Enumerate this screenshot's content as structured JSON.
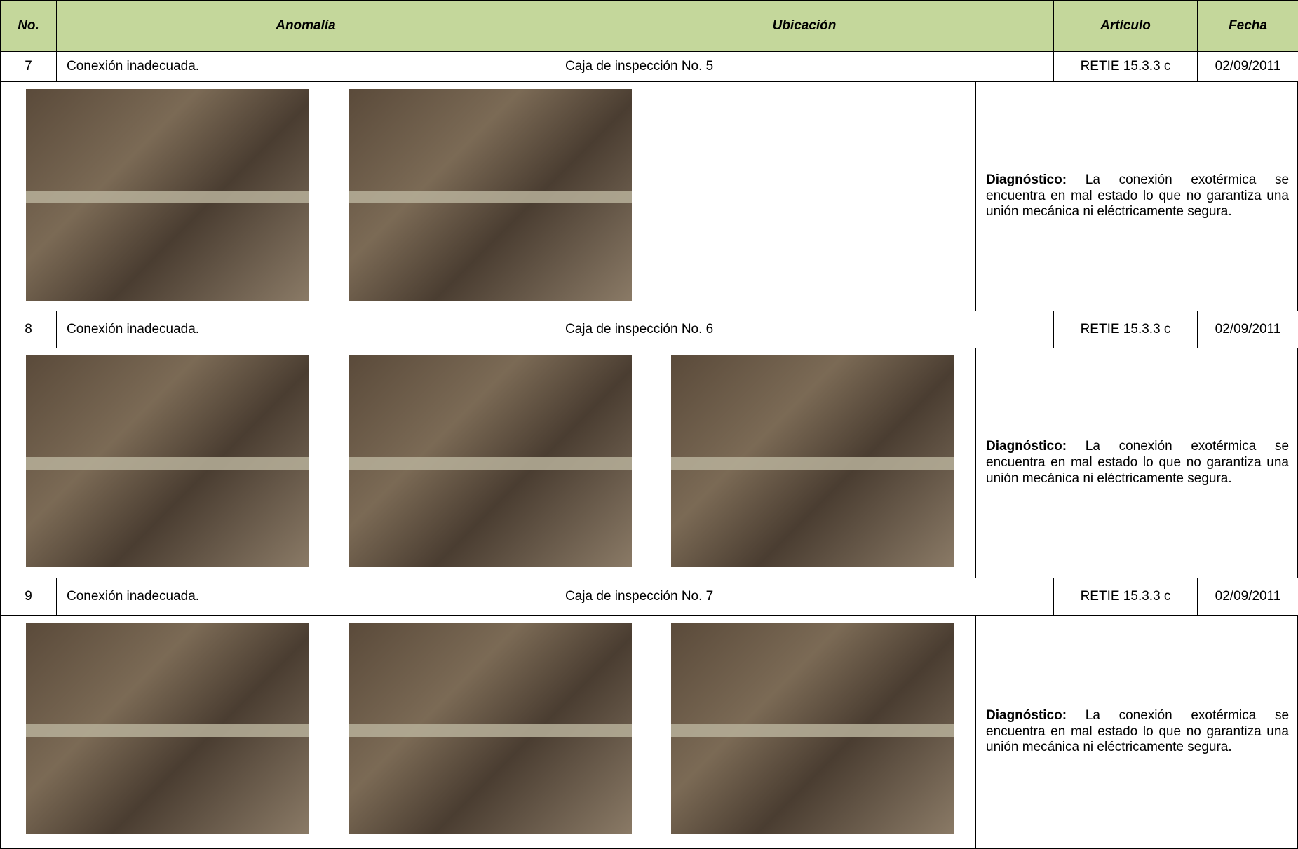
{
  "header": [
    "No.",
    "Anomalía",
    "Ubicación",
    "Artículo",
    "Fecha"
  ],
  "records": [
    {
      "no": "7",
      "anomalia": "Conexión inadecuada.",
      "ubicacion": "Caja de inspección No. 5",
      "articulo": "RETIE 15.3.3 c",
      "fecha": "02/09/2011",
      "diagnostico_label": "Diagnóstico:",
      "diagnostico_text": "La conexión exotérmica se encuentra en mal estado lo que no garantiza una unión mecánica ni eléctricamente segura."
    },
    {
      "no": "8",
      "anomalia": "Conexión inadecuada.",
      "ubicacion": "Caja de inspección No. 6",
      "articulo": "RETIE 15.3.3 c",
      "fecha": "02/09/2011",
      "diagnostico_label": "Diagnóstico:",
      "diagnostico_text": "La conexión exotérmica se encuentra en mal estado lo que no garantiza una unión mecánica ni eléctricamente segura."
    },
    {
      "no": "9",
      "anomalia": "Conexión inadecuada.",
      "ubicacion": "Caja de inspección No. 7",
      "articulo": "RETIE 15.3.3 c",
      "fecha": "02/09/2011",
      "diagnostico_label": "Diagnóstico:",
      "diagnostico_text": "La conexión exotérmica se encuentra en mal estado lo que no garantiza una unión mecánica ni eléctricamente segura."
    }
  ]
}
